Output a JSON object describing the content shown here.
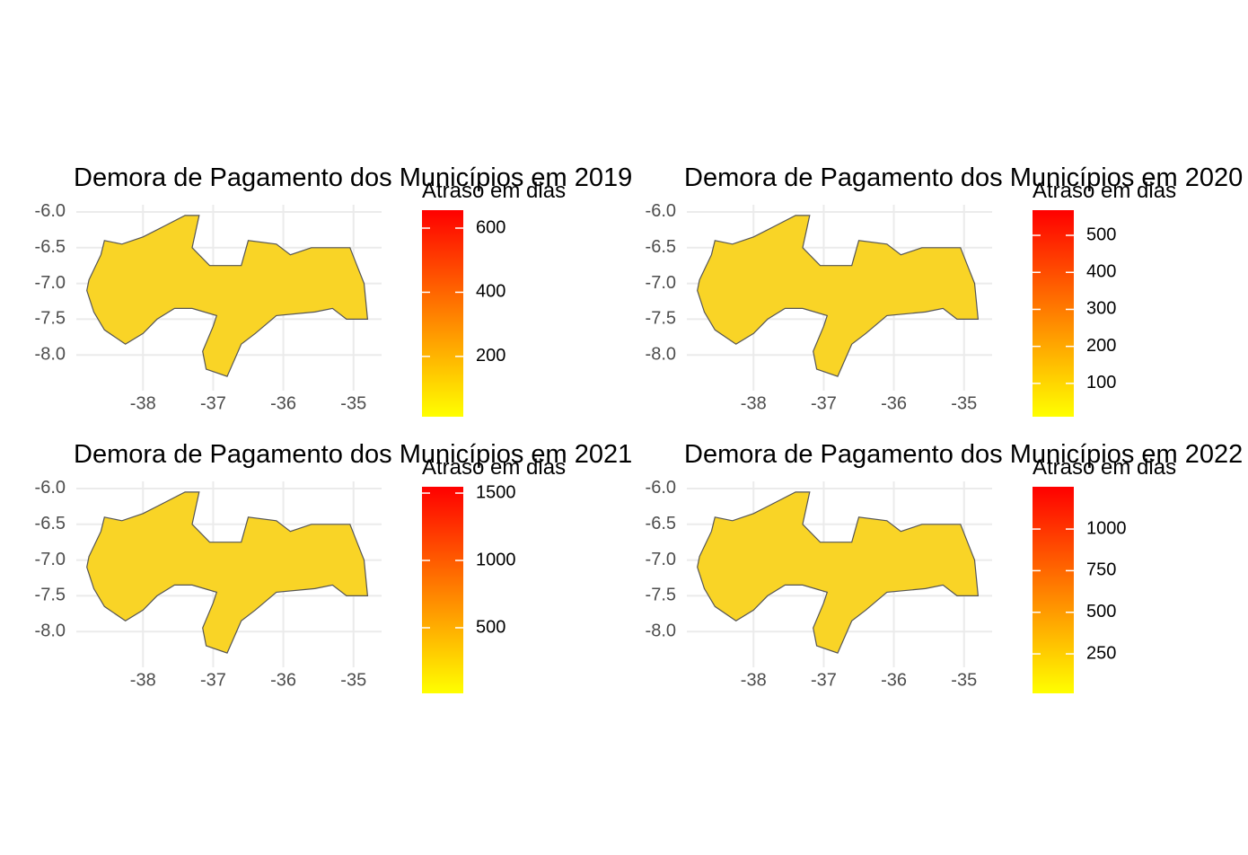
{
  "chart_data": [
    {
      "type": "map",
      "title": "Demora de Pagamento dos Municípios em 2019",
      "legend_title": "Atraso em dias",
      "xlim": [
        -38.95,
        -34.6
      ],
      "ylim": [
        -8.5,
        -5.9
      ],
      "xticks": [
        -38,
        -37,
        -36,
        -35
      ],
      "yticks": [
        {
          "value": -6,
          "label": "-6.0"
        },
        -6.5,
        {
          "value": -7,
          "label": "-7.0"
        },
        -7.5,
        {
          "value": -8,
          "label": "-8.0"
        }
      ],
      "colorscale": [
        "#ffff00",
        "#ff0000"
      ],
      "color_range": [
        12,
        656
      ],
      "legend_ticks": [
        200,
        400,
        600
      ],
      "grid": true
    },
    {
      "type": "map",
      "title": "Demora de Pagamento dos Municípios em 2020",
      "legend_title": "Atraso em dias",
      "xlim": [
        -38.95,
        -34.6
      ],
      "ylim": [
        -8.5,
        -5.9
      ],
      "xticks": [
        -38,
        -37,
        -36,
        -35
      ],
      "yticks": [
        {
          "value": -6,
          "label": "-6.0"
        },
        -6.5,
        {
          "value": -7,
          "label": "-7.0"
        },
        -7.5,
        {
          "value": -8,
          "label": "-8.0"
        }
      ],
      "colorscale": [
        "#ffff00",
        "#ff0000"
      ],
      "color_range": [
        10,
        568
      ],
      "legend_ticks": [
        100,
        200,
        300,
        400,
        500
      ],
      "grid": true
    },
    {
      "type": "map",
      "title": "Demora de Pagamento dos Municípios em 2021",
      "legend_title": "Atraso em dias",
      "xlim": [
        -38.95,
        -34.6
      ],
      "ylim": [
        -8.5,
        -5.9
      ],
      "xticks": [
        -38,
        -37,
        -36,
        -35
      ],
      "yticks": [
        {
          "value": -6,
          "label": "-6.0"
        },
        -6.5,
        {
          "value": -7,
          "label": "-7.0"
        },
        -7.5,
        {
          "value": -8,
          "label": "-8.0"
        }
      ],
      "colorscale": [
        "#ffff00",
        "#ff0000"
      ],
      "color_range": [
        13,
        1547
      ],
      "legend_ticks": [
        500,
        1000,
        1500
      ],
      "grid": true
    },
    {
      "type": "map",
      "title": "Demora de Pagamento dos Municípios em 2022",
      "legend_title": "Atraso em dias",
      "xlim": [
        -38.95,
        -34.6
      ],
      "ylim": [
        -8.5,
        -5.9
      ],
      "xticks": [
        -38,
        -37,
        -36,
        -35
      ],
      "yticks": [
        {
          "value": -6,
          "label": "-6.0"
        },
        -6.5,
        {
          "value": -7,
          "label": "-7.0"
        },
        -7.5,
        {
          "value": -8,
          "label": "-8.0"
        }
      ],
      "colorscale": [
        "#ffff00",
        "#ff0000"
      ],
      "color_range": [
        13,
        1254
      ],
      "legend_ticks": [
        250,
        500,
        750,
        1000
      ],
      "grid": true
    }
  ]
}
